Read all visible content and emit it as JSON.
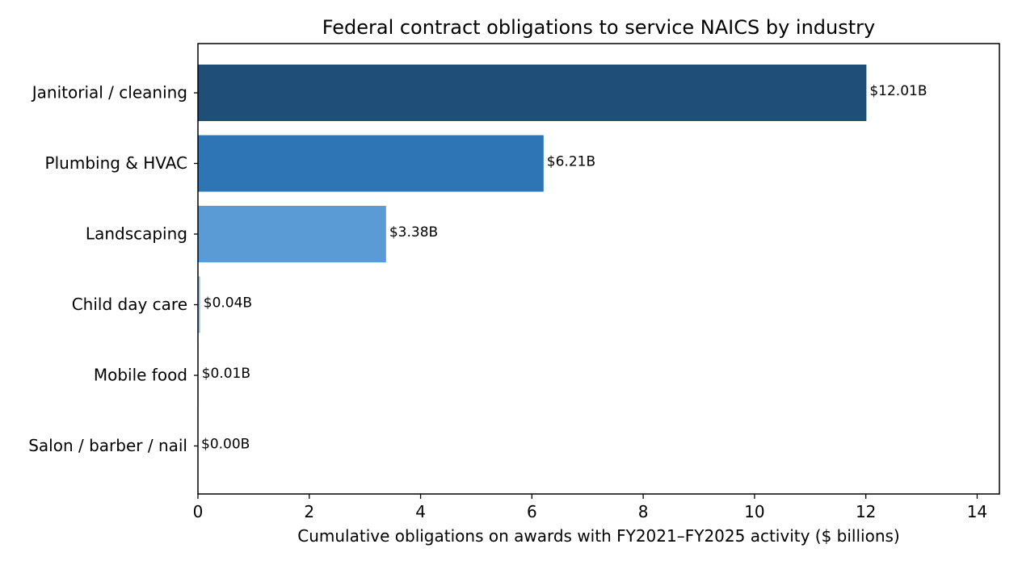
{
  "chart_data": {
    "type": "bar",
    "orientation": "horizontal",
    "title": "Federal contract obligations to service NAICS by industry",
    "xlabel": "Cumulative obligations on awards with FY2021–FY2025 activity ($ billions)",
    "ylabel": "",
    "xlim": [
      0,
      14.4
    ],
    "xticks": [
      0,
      2,
      4,
      6,
      8,
      10,
      12,
      14
    ],
    "grid": false,
    "categories": [
      "Janitorial / cleaning",
      "Plumbing & HVAC",
      "Landscaping",
      "Child day care",
      "Mobile food",
      "Salon / barber / nail"
    ],
    "values": [
      12.01,
      6.21,
      3.38,
      0.04,
      0.01,
      0.0
    ],
    "data_labels": [
      "$12.01B",
      "$6.21B",
      "$3.38B",
      "$0.04B",
      "$0.01B",
      "$0.00B"
    ],
    "colors": [
      "#1f4e79",
      "#2e75b6",
      "#5b9bd5",
      "#9dc3e6",
      "#bdd7ee",
      "#deebf7"
    ]
  }
}
